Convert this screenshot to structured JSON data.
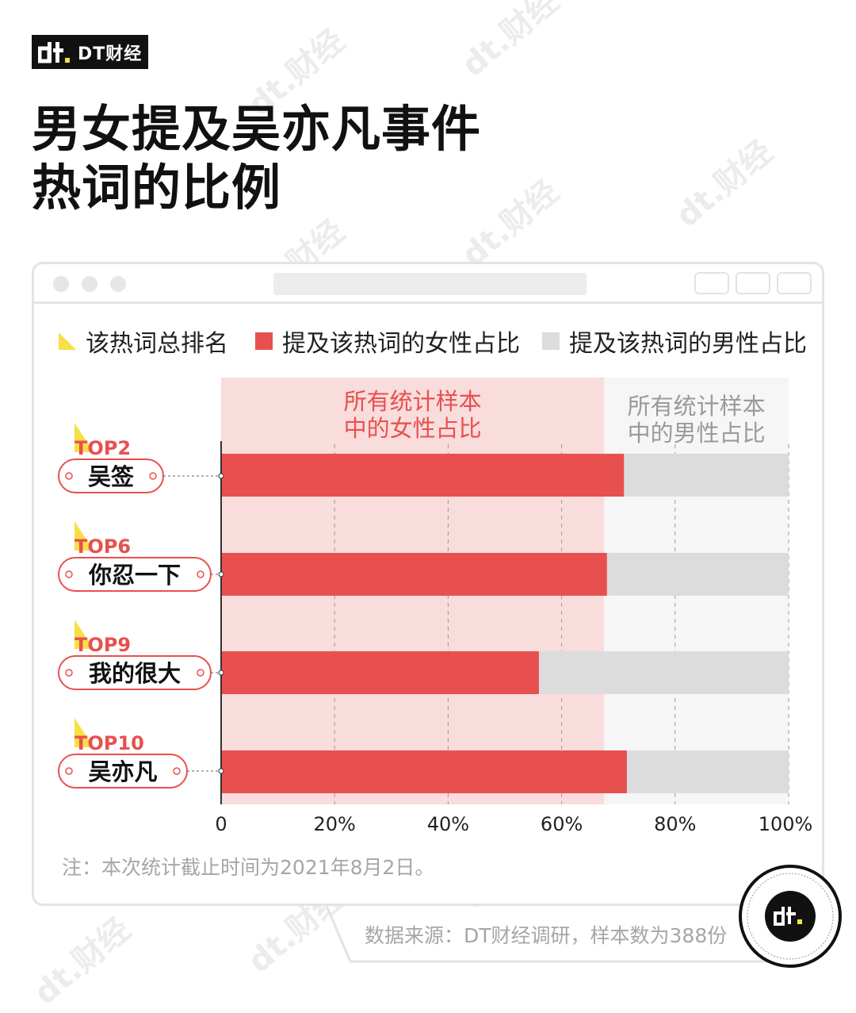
{
  "brand": {
    "name": "DT财经"
  },
  "title": {
    "line1": "男女提及吴亦凡事件",
    "line2": "热词的比例"
  },
  "legend": {
    "rank": {
      "label": "该热词总排名",
      "color": "#f6e045"
    },
    "female": {
      "label": "提及该热词的女性占比",
      "color": "#e8504f"
    },
    "male": {
      "label": "提及该热词的男性占比",
      "color": "#dcdcdc"
    }
  },
  "chart_data": {
    "type": "bar",
    "orientation": "horizontal",
    "stacked": true,
    "categories": [
      "吴签",
      "你忍一下",
      "我的很大",
      "吴亦凡"
    ],
    "ranks": [
      "TOP2",
      "TOP6",
      "TOP9",
      "TOP10"
    ],
    "series": [
      {
        "name": "提及该热词的女性占比",
        "values": [
          71,
          68,
          56,
          71.5
        ],
        "color": "#e8504f"
      },
      {
        "name": "提及该热词的男性占比",
        "values": [
          29,
          32,
          44,
          28.5
        ],
        "color": "#dcdcdc"
      }
    ],
    "baseline": {
      "female_share": 67.5,
      "female_label": [
        "所有统计样本",
        "中的女性占比"
      ],
      "male_label": [
        "所有统计样本",
        "中的男性占比"
      ],
      "female_bg": "#f9dcdc",
      "male_bg": "#f6f6f6"
    },
    "xlim": [
      0,
      100
    ],
    "xticks": [
      0,
      20,
      40,
      60,
      80,
      100
    ],
    "xtick_labels": [
      "0",
      "20%",
      "40%",
      "60%",
      "80%",
      "100%"
    ],
    "grid": true
  },
  "footnote": "注：本次统计截止时间为2021年8月2日。",
  "source": "数据来源：DT财经调研，样本数为388份",
  "watermark": "dt.财经"
}
